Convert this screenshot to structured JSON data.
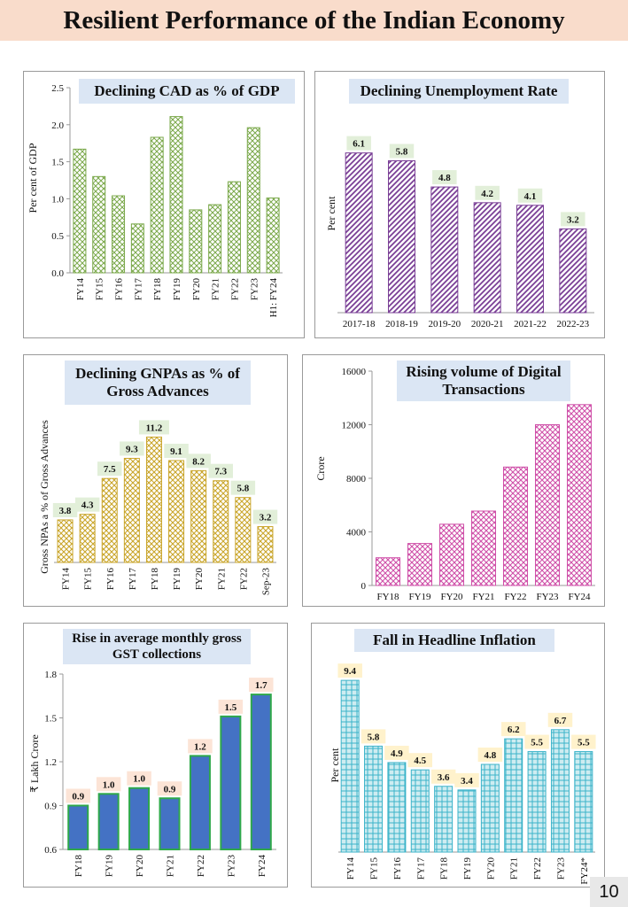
{
  "page": {
    "title": "Resilient Performance of the Indian Economy",
    "page_number": "10"
  },
  "chart_data": [
    {
      "type": "bar",
      "title": "Declining CAD as % of GDP",
      "xlabel": "",
      "ylabel": "Per cent of GDP",
      "categories": [
        "FY14",
        "FY15",
        "FY16",
        "FY17",
        "FY18",
        "FY19",
        "FY20",
        "FY21",
        "FY22",
        "FY23",
        "H1: FY24"
      ],
      "values": [
        1.67,
        1.3,
        1.04,
        0.66,
        1.83,
        2.11,
        0.85,
        0.92,
        1.23,
        1.96,
        1.01
      ],
      "ylim": [
        0,
        2.5
      ],
      "yticks": [
        "0.0",
        "0.5",
        "1.0",
        "1.5",
        "2.0",
        "2.5"
      ],
      "data_labels": [],
      "color": "#7aa84a",
      "label_bg": "",
      "grid": false
    },
    {
      "type": "bar",
      "title": "Declining Unemployment Rate",
      "xlabel": "",
      "ylabel": "Per cent",
      "categories": [
        "2017-18",
        "2018-19",
        "2019-20",
        "2020-21",
        "2021-22",
        "2022-23"
      ],
      "values": [
        6.1,
        5.8,
        4.8,
        4.2,
        4.1,
        3.2
      ],
      "ylim": [
        0,
        6.9
      ],
      "yticks": [],
      "data_labels": [
        "6.1",
        "5.8",
        "4.8",
        "4.2",
        "4.1",
        "3.2"
      ],
      "color": "#7a3f96",
      "label_bg": "#e2efd9",
      "grid": false
    },
    {
      "type": "bar",
      "title": "Declining GNPAs as % of Gross Advances",
      "xlabel": "",
      "ylabel": "Gross NPAs a % of Gross Advances",
      "categories": [
        "FY14",
        "FY15",
        "FY16",
        "FY17",
        "FY18",
        "FY19",
        "FY20",
        "FY21",
        "FY22",
        "Sep-23"
      ],
      "values": [
        3.8,
        4.3,
        7.5,
        9.3,
        11.2,
        9.1,
        8.2,
        7.3,
        5.8,
        3.2
      ],
      "ylim": [
        0,
        12.5
      ],
      "yticks": [],
      "data_labels": [
        "3.8",
        "4.3",
        "7.5",
        "9.3",
        "11.2",
        "9.1",
        "8.2",
        "7.3",
        "5.8",
        "3.2"
      ],
      "color": "#c9a52a",
      "label_bg": "#e2efd9",
      "grid": false
    },
    {
      "type": "bar",
      "title": "Rising volume of Digital Transactions",
      "xlabel": "",
      "ylabel": "Crore",
      "categories": [
        "FY18",
        "FY19",
        "FY20",
        "FY21",
        "FY22",
        "FY23",
        "FY24"
      ],
      "values": [
        2070,
        3134,
        4572,
        5554,
        8840,
        12000,
        13500
      ],
      "ylim": [
        0,
        16000
      ],
      "yticks": [
        "0",
        "4000",
        "8000",
        "12000",
        "16000"
      ],
      "data_labels": [],
      "color": "#cf4fa8",
      "label_bg": "",
      "grid": false
    },
    {
      "type": "bar",
      "title": "Rise in average monthly gross GST collections",
      "xlabel": "",
      "ylabel": "₹ Lakh Crore",
      "categories": [
        "FY18",
        "FY19",
        "FY20",
        "FY21",
        "FY22",
        "FY23",
        "FY24"
      ],
      "values": [
        0.9,
        0.98,
        1.02,
        0.95,
        1.24,
        1.51,
        1.66
      ],
      "ylim": [
        0.6,
        1.8
      ],
      "yticks": [
        "0.6",
        "0.9",
        "1.2",
        "1.5",
        "1.8"
      ],
      "data_labels": [
        "0.9",
        "1.0",
        "1.0",
        "0.9",
        "1.2",
        "1.5",
        "1.7"
      ],
      "color": "#4472c4",
      "label_bg": "#fce4d6",
      "grid": false
    },
    {
      "type": "bar",
      "title": "Fall in Headline Inflation",
      "xlabel": "",
      "ylabel": "Per cent",
      "categories": [
        "FY14",
        "FY15",
        "FY16",
        "FY17",
        "FY18",
        "FY19",
        "FY20",
        "FY21",
        "FY22",
        "FY23",
        "FY24*"
      ],
      "values": [
        9.4,
        5.8,
        4.9,
        4.5,
        3.6,
        3.4,
        4.8,
        6.2,
        5.5,
        6.7,
        5.5
      ],
      "ylim": [
        0,
        9.6
      ],
      "yticks": [],
      "data_labels": [
        "9.4",
        "5.8",
        "4.9",
        "4.5",
        "3.6",
        "3.4",
        "4.8",
        "6.2",
        "5.5",
        "6.7",
        "5.5"
      ],
      "color": "#3bb3c9",
      "label_bg": "#fff2cc",
      "grid": false
    }
  ]
}
